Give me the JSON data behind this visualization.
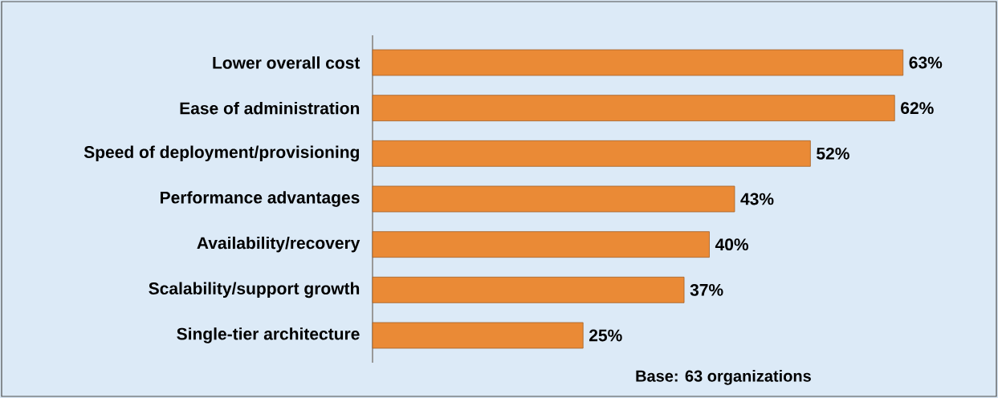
{
  "chart_data": {
    "type": "bar",
    "orientation": "horizontal",
    "categories": [
      "Lower overall cost",
      "Ease of administration",
      "Speed of deployment/provisioning",
      "Performance advantages",
      "Availability/recovery",
      "Scalability/support growth",
      "Single-tier architecture"
    ],
    "values": [
      63,
      62,
      52,
      43,
      40,
      37,
      25
    ],
    "value_labels": [
      "63%",
      "62%",
      "52%",
      "43%",
      "40%",
      "37%",
      "25%"
    ],
    "color": "#ea8a36",
    "annotations": [
      "Base: 63 organizations"
    ]
  }
}
